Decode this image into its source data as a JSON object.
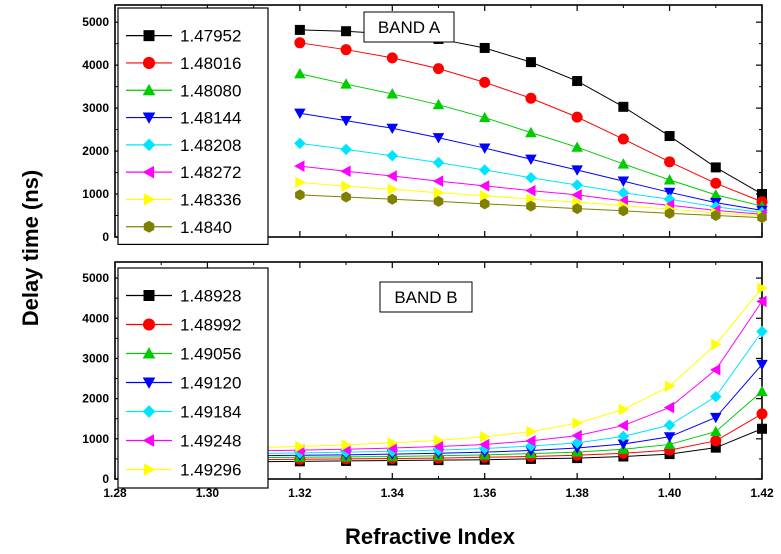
{
  "chart_data": [
    {
      "type": "line",
      "title": "BAND A",
      "ylabel": "Delay time (ns)",
      "xlabel": "",
      "xlim": [
        1.28,
        1.42
      ],
      "ylim": [
        0,
        5400
      ],
      "yticks": [
        0,
        1000,
        2000,
        3000,
        4000,
        5000
      ],
      "x": [
        1.32,
        1.33,
        1.34,
        1.35,
        1.36,
        1.37,
        1.38,
        1.39,
        1.4,
        1.41,
        1.42
      ],
      "legend_position": "top-left",
      "series": [
        {
          "name": "1.47952",
          "color": "#000000",
          "marker": "square",
          "values": [
            4820,
            4790,
            4720,
            4610,
            4400,
            4070,
            3630,
            3030,
            2350,
            1620,
            1000
          ]
        },
        {
          "name": "1.48016",
          "color": "#ff0000",
          "marker": "circle",
          "values": [
            4520,
            4360,
            4170,
            3920,
            3600,
            3230,
            2790,
            2280,
            1750,
            1250,
            820
          ]
        },
        {
          "name": "1.48080",
          "color": "#00cc00",
          "marker": "triangle-up",
          "values": [
            3800,
            3560,
            3330,
            3080,
            2780,
            2430,
            2090,
            1700,
            1330,
            980,
            720
          ]
        },
        {
          "name": "1.48144",
          "color": "#0000ff",
          "marker": "triangle-down",
          "values": [
            2880,
            2710,
            2530,
            2310,
            2070,
            1810,
            1560,
            1300,
            1040,
            800,
            620
          ]
        },
        {
          "name": "1.48208",
          "color": "#00e5ff",
          "marker": "diamond",
          "values": [
            2180,
            2040,
            1890,
            1730,
            1560,
            1380,
            1210,
            1030,
            880,
            700,
            570
          ]
        },
        {
          "name": "1.48272",
          "color": "#ff00ff",
          "marker": "triangle-left",
          "values": [
            1650,
            1530,
            1420,
            1300,
            1190,
            1080,
            980,
            840,
            740,
            620,
            530
          ]
        },
        {
          "name": "1.48336",
          "color": "#ffff00",
          "marker": "triangle-right",
          "values": [
            1270,
            1180,
            1110,
            1030,
            960,
            880,
            810,
            730,
            650,
            560,
            500
          ]
        },
        {
          "name": "1.4840",
          "color": "#808000",
          "marker": "hexagon",
          "values": [
            980,
            930,
            880,
            830,
            770,
            720,
            660,
            610,
            550,
            500,
            450
          ]
        }
      ]
    },
    {
      "type": "line",
      "title": "BAND B",
      "ylabel": "Delay time (ns)",
      "xlabel": "Refractive Index",
      "xlim": [
        1.28,
        1.42
      ],
      "ylim": [
        0,
        5400
      ],
      "xticks": [
        1.28,
        1.3,
        1.32,
        1.34,
        1.36,
        1.38,
        1.4,
        1.42
      ],
      "xtick_labels": [
        "1.28",
        "1.30",
        "1.32",
        "1.34",
        "1.36",
        "1.38",
        "1.40",
        "1.42"
      ],
      "yticks": [
        0,
        1000,
        2000,
        3000,
        4000,
        5000
      ],
      "x": [
        1.31,
        1.32,
        1.33,
        1.34,
        1.35,
        1.36,
        1.37,
        1.38,
        1.39,
        1.4,
        1.41,
        1.42
      ],
      "legend_position": "top-left",
      "series": [
        {
          "name": "1.48928",
          "color": "#000000",
          "marker": "square",
          "values": [
            430,
            440,
            450,
            460,
            470,
            480,
            500,
            520,
            560,
            620,
            780,
            1250
          ]
        },
        {
          "name": "1.48992",
          "color": "#ff0000",
          "marker": "circle",
          "values": [
            480,
            490,
            500,
            510,
            520,
            540,
            560,
            590,
            640,
            720,
            950,
            1620
          ]
        },
        {
          "name": "1.49056",
          "color": "#00cc00",
          "marker": "triangle-up",
          "values": [
            530,
            540,
            550,
            560,
            580,
            600,
            630,
            670,
            740,
            860,
            1180,
            2180
          ]
        },
        {
          "name": "1.49120",
          "color": "#0000ff",
          "marker": "triangle-down",
          "values": [
            580,
            590,
            600,
            620,
            640,
            670,
            710,
            770,
            870,
            1050,
            1530,
            2850
          ]
        },
        {
          "name": "1.49184",
          "color": "#00e5ff",
          "marker": "diamond",
          "values": [
            630,
            650,
            670,
            690,
            720,
            760,
            820,
            900,
            1060,
            1340,
            2050,
            3670
          ]
        },
        {
          "name": "1.49248",
          "color": "#ff00ff",
          "marker": "triangle-left",
          "values": [
            700,
            720,
            740,
            770,
            810,
            860,
            950,
            1080,
            1330,
            1780,
            2720,
            4420
          ]
        },
        {
          "name": "1.49296",
          "color": "#ffff00",
          "marker": "triangle-right",
          "values": [
            780,
            810,
            850,
            900,
            960,
            1050,
            1180,
            1390,
            1730,
            2310,
            3350,
            4750
          ]
        }
      ]
    }
  ]
}
